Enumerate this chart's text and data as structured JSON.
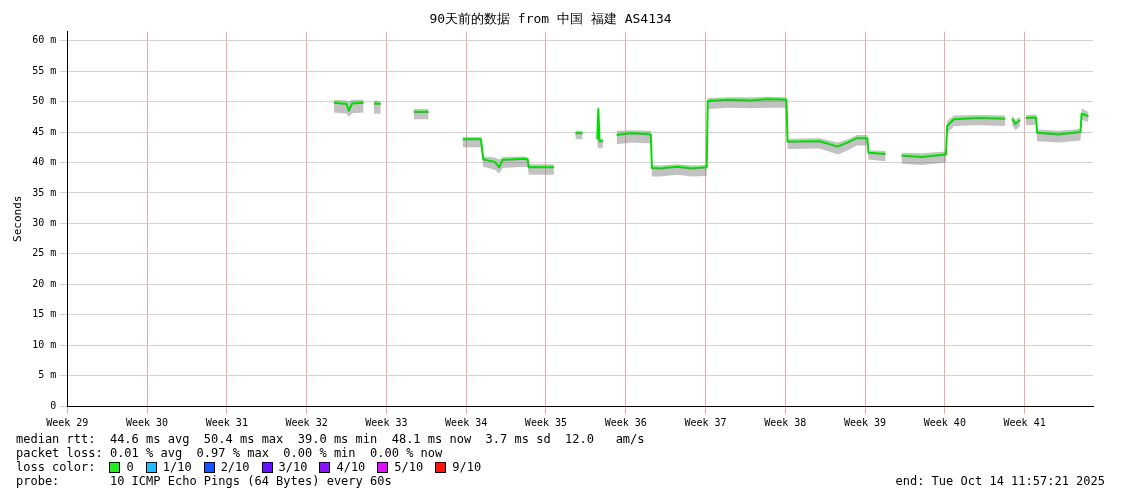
{
  "chart_data": {
    "type": "line",
    "title": "90天前的数据 from 中国 福建 AS4134",
    "ylabel": "Seconds",
    "xlim": [
      "2025-07-16T12:00",
      "2025-10-14T12:00"
    ],
    "xticks": [
      {
        "value": "2025-07-16T12:00",
        "label": "Week 29"
      },
      {
        "value": "2025-07-23T12:00",
        "label": "Week 30"
      },
      {
        "value": "2025-07-30T12:00",
        "label": "Week 31"
      },
      {
        "value": "2025-08-06T12:00",
        "label": "Week 32"
      },
      {
        "value": "2025-08-13T12:00",
        "label": "Week 33"
      },
      {
        "value": "2025-08-20T12:00",
        "label": "Week 34"
      },
      {
        "value": "2025-08-27T12:00",
        "label": "Week 35"
      },
      {
        "value": "2025-09-03T12:00",
        "label": "Week 36"
      },
      {
        "value": "2025-09-10T12:00",
        "label": "Week 37"
      },
      {
        "value": "2025-09-17T12:00",
        "label": "Week 38"
      },
      {
        "value": "2025-09-24T12:00",
        "label": "Week 39"
      },
      {
        "value": "2025-10-01T12:00",
        "label": "Week 40"
      },
      {
        "value": "2025-10-08T12:00",
        "label": "Week 41"
      }
    ],
    "ylim": [
      0,
      61.5
    ],
    "yticks": [
      0,
      {
        "value": 5,
        "label": "5 m"
      },
      {
        "value": 10,
        "label": "10 m"
      },
      {
        "value": 15,
        "label": "15 m"
      },
      {
        "value": 20,
        "label": "20 m"
      },
      {
        "value": 25,
        "label": "25 m"
      },
      {
        "value": 30,
        "label": "30 m"
      },
      {
        "value": 35,
        "label": "35 m"
      },
      {
        "value": 40,
        "label": "40 m"
      },
      {
        "value": 45,
        "label": "45 m"
      },
      {
        "value": 50,
        "label": "50 m"
      },
      {
        "value": 55,
        "label": "55 m"
      },
      {
        "value": 60,
        "label": "60 m"
      }
    ],
    "grid": true,
    "legend": false,
    "marker": "none",
    "line_style": "solid",
    "series": [
      {
        "color": "#00dd00",
        "x": [
          "2025-08-08T21:36",
          "2025-08-10T00:00",
          "2025-08-10T04:48",
          "2025-08-10T12:00",
          "2025-08-11T12:00",
          "2025-08-12T00:00",
          "2025-08-12T09:36",
          "2025-08-13T00:00",
          "2025-08-14T12:00",
          "2025-08-15T21:36",
          "2025-08-17T04:48",
          "2025-08-18T12:00",
          "2025-08-20T04:48",
          "2025-08-21T19:12",
          "2025-08-22T00:00",
          "2025-08-23T00:00",
          "2025-08-23T09:36",
          "2025-08-23T16:48",
          "2025-08-25T12:00",
          "2025-08-25T21:36",
          "2025-08-26T00:00",
          "2025-08-28T04:48",
          "2025-08-29T07:12",
          "2025-08-30T02:00",
          "2025-08-30T17:00",
          "2025-08-31T04:48",
          "2025-09-01T00:00",
          "2025-09-01T02:24",
          "2025-09-01T04:48",
          "2025-09-01T12:00",
          "2025-09-02T02:24",
          "2025-09-02T16:48",
          "2025-09-04T00:00",
          "2025-09-05T16:48",
          "2025-09-05T19:12",
          "2025-09-06T12:00",
          "2025-09-08T00:00",
          "2025-09-09T07:12",
          "2025-09-10T14:24",
          "2025-09-10T16:48",
          "2025-09-12T12:00",
          "2025-09-14T12:00",
          "2025-09-16T00:00",
          "2025-09-17T14:24",
          "2025-09-17T16:48",
          "2025-09-20T12:00",
          "2025-09-22T02:24",
          "2025-09-23T00:00",
          "2025-09-23T19:12",
          "2025-09-24T16:48",
          "2025-09-24T19:12",
          "2025-09-26T07:12",
          "2025-09-27T00:00",
          "2025-09-27T16:48",
          "2025-09-29T12:00",
          "2025-10-01T14:24",
          "2025-10-01T16:48",
          "2025-10-02T07:12",
          "2025-10-04T12:00",
          "2025-10-06T19:12",
          "2025-10-07T02:24",
          "2025-10-07T09:36",
          "2025-10-07T16:48",
          "2025-10-08T02:24",
          "2025-10-08T07:12",
          "2025-10-08T14:24",
          "2025-10-09T12:00",
          "2025-10-09T14:24",
          "2025-10-11T12:00",
          "2025-10-13T09:36",
          "2025-10-13T12:00",
          "2025-10-14T02:24"
        ],
        "values": [
          49.8,
          49.6,
          48.5,
          49.7,
          49.8,
          null,
          49.7,
          49.6,
          null,
          48.3,
          48.3,
          null,
          43.8,
          43.8,
          40.5,
          40.1,
          39.2,
          40.4,
          40.6,
          40.5,
          39.2,
          39.2,
          null,
          44.8,
          44.8,
          null,
          43.8,
          48.8,
          43.5,
          43.5,
          null,
          44.5,
          44.8,
          44.6,
          39.1,
          39.0,
          39.3,
          39.0,
          39.2,
          50.1,
          50.3,
          50.2,
          50.4,
          50.3,
          43.4,
          43.5,
          42.6,
          43.3,
          44.0,
          44.0,
          41.6,
          41.4,
          null,
          41.1,
          40.9,
          41.3,
          46.0,
          47.1,
          47.3,
          47.2,
          null,
          47.2,
          46.3,
          47.0,
          null,
          47.3,
          47.4,
          44.9,
          44.6,
          45.0,
          48.0,
          47.6
        ],
        "lower": [
          48.2,
          48.0,
          47.5,
          48.1,
          48.2,
          null,
          48.0,
          48.0,
          null,
          47.1,
          47.1,
          null,
          42.5,
          42.5,
          39.3,
          38.8,
          38.2,
          39.1,
          39.3,
          39.2,
          38.0,
          38.0,
          null,
          43.8,
          43.8,
          null,
          42.5,
          42.5,
          42.3,
          42.5,
          null,
          43.0,
          43.3,
          43.1,
          37.7,
          37.7,
          38.0,
          37.7,
          37.8,
          48.8,
          49.0,
          48.9,
          49.0,
          49.0,
          42.2,
          42.3,
          41.3,
          42.0,
          42.8,
          42.8,
          40.5,
          40.2,
          null,
          39.8,
          39.6,
          40.0,
          44.8,
          46.0,
          46.1,
          46.0,
          null,
          46.1,
          45.3,
          46.0,
          null,
          46.1,
          46.2,
          43.5,
          43.3,
          43.6,
          47.0,
          46.6
        ],
        "upper": [
          50.3,
          50.2,
          50.0,
          50.3,
          50.3,
          null,
          50.2,
          50.1,
          null,
          48.8,
          48.8,
          null,
          44.2,
          44.2,
          41.0,
          40.8,
          40.5,
          40.9,
          41.0,
          40.9,
          39.7,
          39.7,
          null,
          45.2,
          45.2,
          null,
          44.3,
          49.5,
          44.0,
          44.0,
          null,
          45.2,
          45.3,
          45.2,
          39.6,
          39.5,
          39.7,
          39.5,
          39.6,
          50.6,
          50.7,
          50.7,
          50.8,
          50.7,
          43.9,
          44.0,
          43.3,
          43.8,
          44.5,
          44.5,
          42.0,
          41.9,
          null,
          41.6,
          41.5,
          41.8,
          46.8,
          47.7,
          47.8,
          47.7,
          null,
          47.7,
          47.0,
          47.5,
          null,
          47.8,
          47.9,
          45.4,
          45.2,
          45.5,
          48.9,
          48.3
        ]
      }
    ],
    "annotations": [
      "median rtt:  44.6 ms avg  50.4 ms max  39.0 ms min  48.1 ms now  3.7 ms sd  12.0   am/s",
      "packet loss: 0.01 % avg  0.97 % max  0.00 % min  0.00 % now",
      "loss color:",
      "0",
      "1/10",
      "2/10",
      "3/10",
      "4/10",
      "5/10",
      "9/10",
      "probe:       10 ICMP Echo Pings (64 Bytes) every 60s",
      "end: Tue Oct 14 11:57:21 2025"
    ]
  }
}
